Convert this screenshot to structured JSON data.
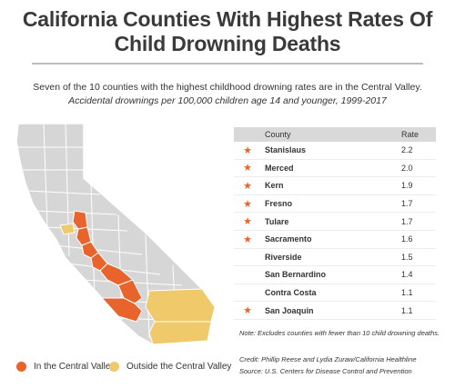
{
  "title": {
    "line1": "California Counties With Highest Rates Of",
    "line2": "Child Drowning Deaths"
  },
  "subtitle": {
    "line1": "Seven of the 10 counties with the highest childhood drowning rates are in the Central Valley.",
    "line2": "Accidental drownings per 100,000 children age 14 and younger, 1999-2017"
  },
  "legend": {
    "central": "In the Central Valley",
    "outside": "Outside the Central Valley"
  },
  "colors": {
    "central": "#e8642c",
    "outside": "#f0c96a",
    "other": "#d6d6d6"
  },
  "chart_data": {
    "type": "table",
    "columns": [
      "County",
      "Rate"
    ],
    "rows": [
      {
        "county": "Stanislaus",
        "rate": "2.2",
        "central_valley": true
      },
      {
        "county": "Merced",
        "rate": "2.0",
        "central_valley": true
      },
      {
        "county": "Kern",
        "rate": "1.9",
        "central_valley": true
      },
      {
        "county": "Fresno",
        "rate": "1.7",
        "central_valley": true
      },
      {
        "county": "Tulare",
        "rate": "1.7",
        "central_valley": true
      },
      {
        "county": "Sacramento",
        "rate": "1.6",
        "central_valley": true
      },
      {
        "county": "Riverside",
        "rate": "1.5",
        "central_valley": false
      },
      {
        "county": "San Bernardino",
        "rate": "1.4",
        "central_valley": false
      },
      {
        "county": "Contra Costa",
        "rate": "1.1",
        "central_valley": false
      },
      {
        "county": "San Joaquin",
        "rate": "1.1",
        "central_valley": true
      }
    ]
  },
  "note": "Note: Excludes counties with fewer than 10 child drowning deaths.",
  "credit": {
    "line1": "Credit: Phillip Reese and Lydia Zuraw/California Healthline",
    "line2": "Source:  U.S. Centers for Disease Control and Prevention"
  }
}
